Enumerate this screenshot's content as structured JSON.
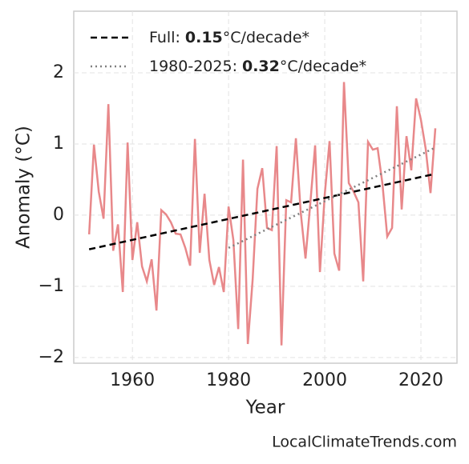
{
  "chart_data": {
    "type": "line",
    "ylabel": "Anomaly (°C)",
    "xlabel": "Year",
    "credit": "LocalClimateTrends.com",
    "xlim": [
      1947.8,
      2027.5
    ],
    "ylim": [
      -2.08,
      2.865
    ],
    "xticks": [
      1960,
      1980,
      2000,
      2020
    ],
    "yticks": [
      {
        "value": -2,
        "label": "−2"
      },
      {
        "value": -1,
        "label": "−1"
      },
      0,
      1,
      2
    ],
    "grid": true,
    "x": [
      1951,
      1952,
      1953,
      1954,
      1955,
      1956,
      1957,
      1958,
      1959,
      1960,
      1961,
      1962,
      1963,
      1964,
      1965,
      1966,
      1967,
      1968,
      1969,
      1970,
      1971,
      1972,
      1973,
      1974,
      1975,
      1976,
      1977,
      1978,
      1979,
      1980,
      1981,
      1982,
      1983,
      1984,
      1985,
      1986,
      1987,
      1988,
      1989,
      1990,
      1991,
      1992,
      1993,
      1994,
      1995,
      1996,
      1997,
      1998,
      1999,
      2000,
      2001,
      2002,
      2003,
      2004,
      2005,
      2006,
      2007,
      2008,
      2009,
      2010,
      2011,
      2012,
      2013,
      2014,
      2015,
      2016,
      2017,
      2018,
      2019,
      2020,
      2021,
      2022,
      2023
    ],
    "series": [
      {
        "color": "#e8888a",
        "style": "solid",
        "values": [
          -0.27,
          0.99,
          0.33,
          -0.05,
          1.56,
          -0.5,
          -0.13,
          -1.08,
          1.02,
          -0.63,
          -0.1,
          -0.72,
          -0.93,
          -0.62,
          -1.34,
          0.07,
          0.01,
          -0.1,
          -0.26,
          -0.27,
          -0.46,
          -0.71,
          1.07,
          -0.53,
          0.3,
          -0.63,
          -0.98,
          -0.73,
          -1.08,
          0.12,
          -0.35,
          -1.6,
          0.78,
          -1.81,
          -0.91,
          0.37,
          0.66,
          -0.18,
          -0.21,
          0.97,
          -1.83,
          0.21,
          0.18,
          1.08,
          0.04,
          -0.61,
          0.17,
          0.98,
          -0.8,
          0.29,
          1.04,
          -0.54,
          -0.78,
          1.87,
          0.45,
          0.33,
          0.18,
          -0.93,
          1.03,
          0.92,
          0.94,
          0.44,
          -0.3,
          -0.18,
          1.53,
          0.08,
          1.11,
          0.63,
          1.64,
          1.34,
          0.93,
          0.31,
          1.22
        ]
      },
      {
        "color": "#000000",
        "style": "dashed",
        "label": "Full:",
        "rate": 0.15,
        "unit": "°C/decade*",
        "x": [
          1951,
          2023
        ],
        "values": [
          -0.48,
          0.58
        ]
      },
      {
        "color": "#808080",
        "style": "dotted",
        "label": "1980-2025:",
        "rate": 0.32,
        "unit": "°C/decade*",
        "x": [
          1980,
          2023
        ],
        "values": [
          -0.46,
          0.95
        ]
      }
    ]
  }
}
